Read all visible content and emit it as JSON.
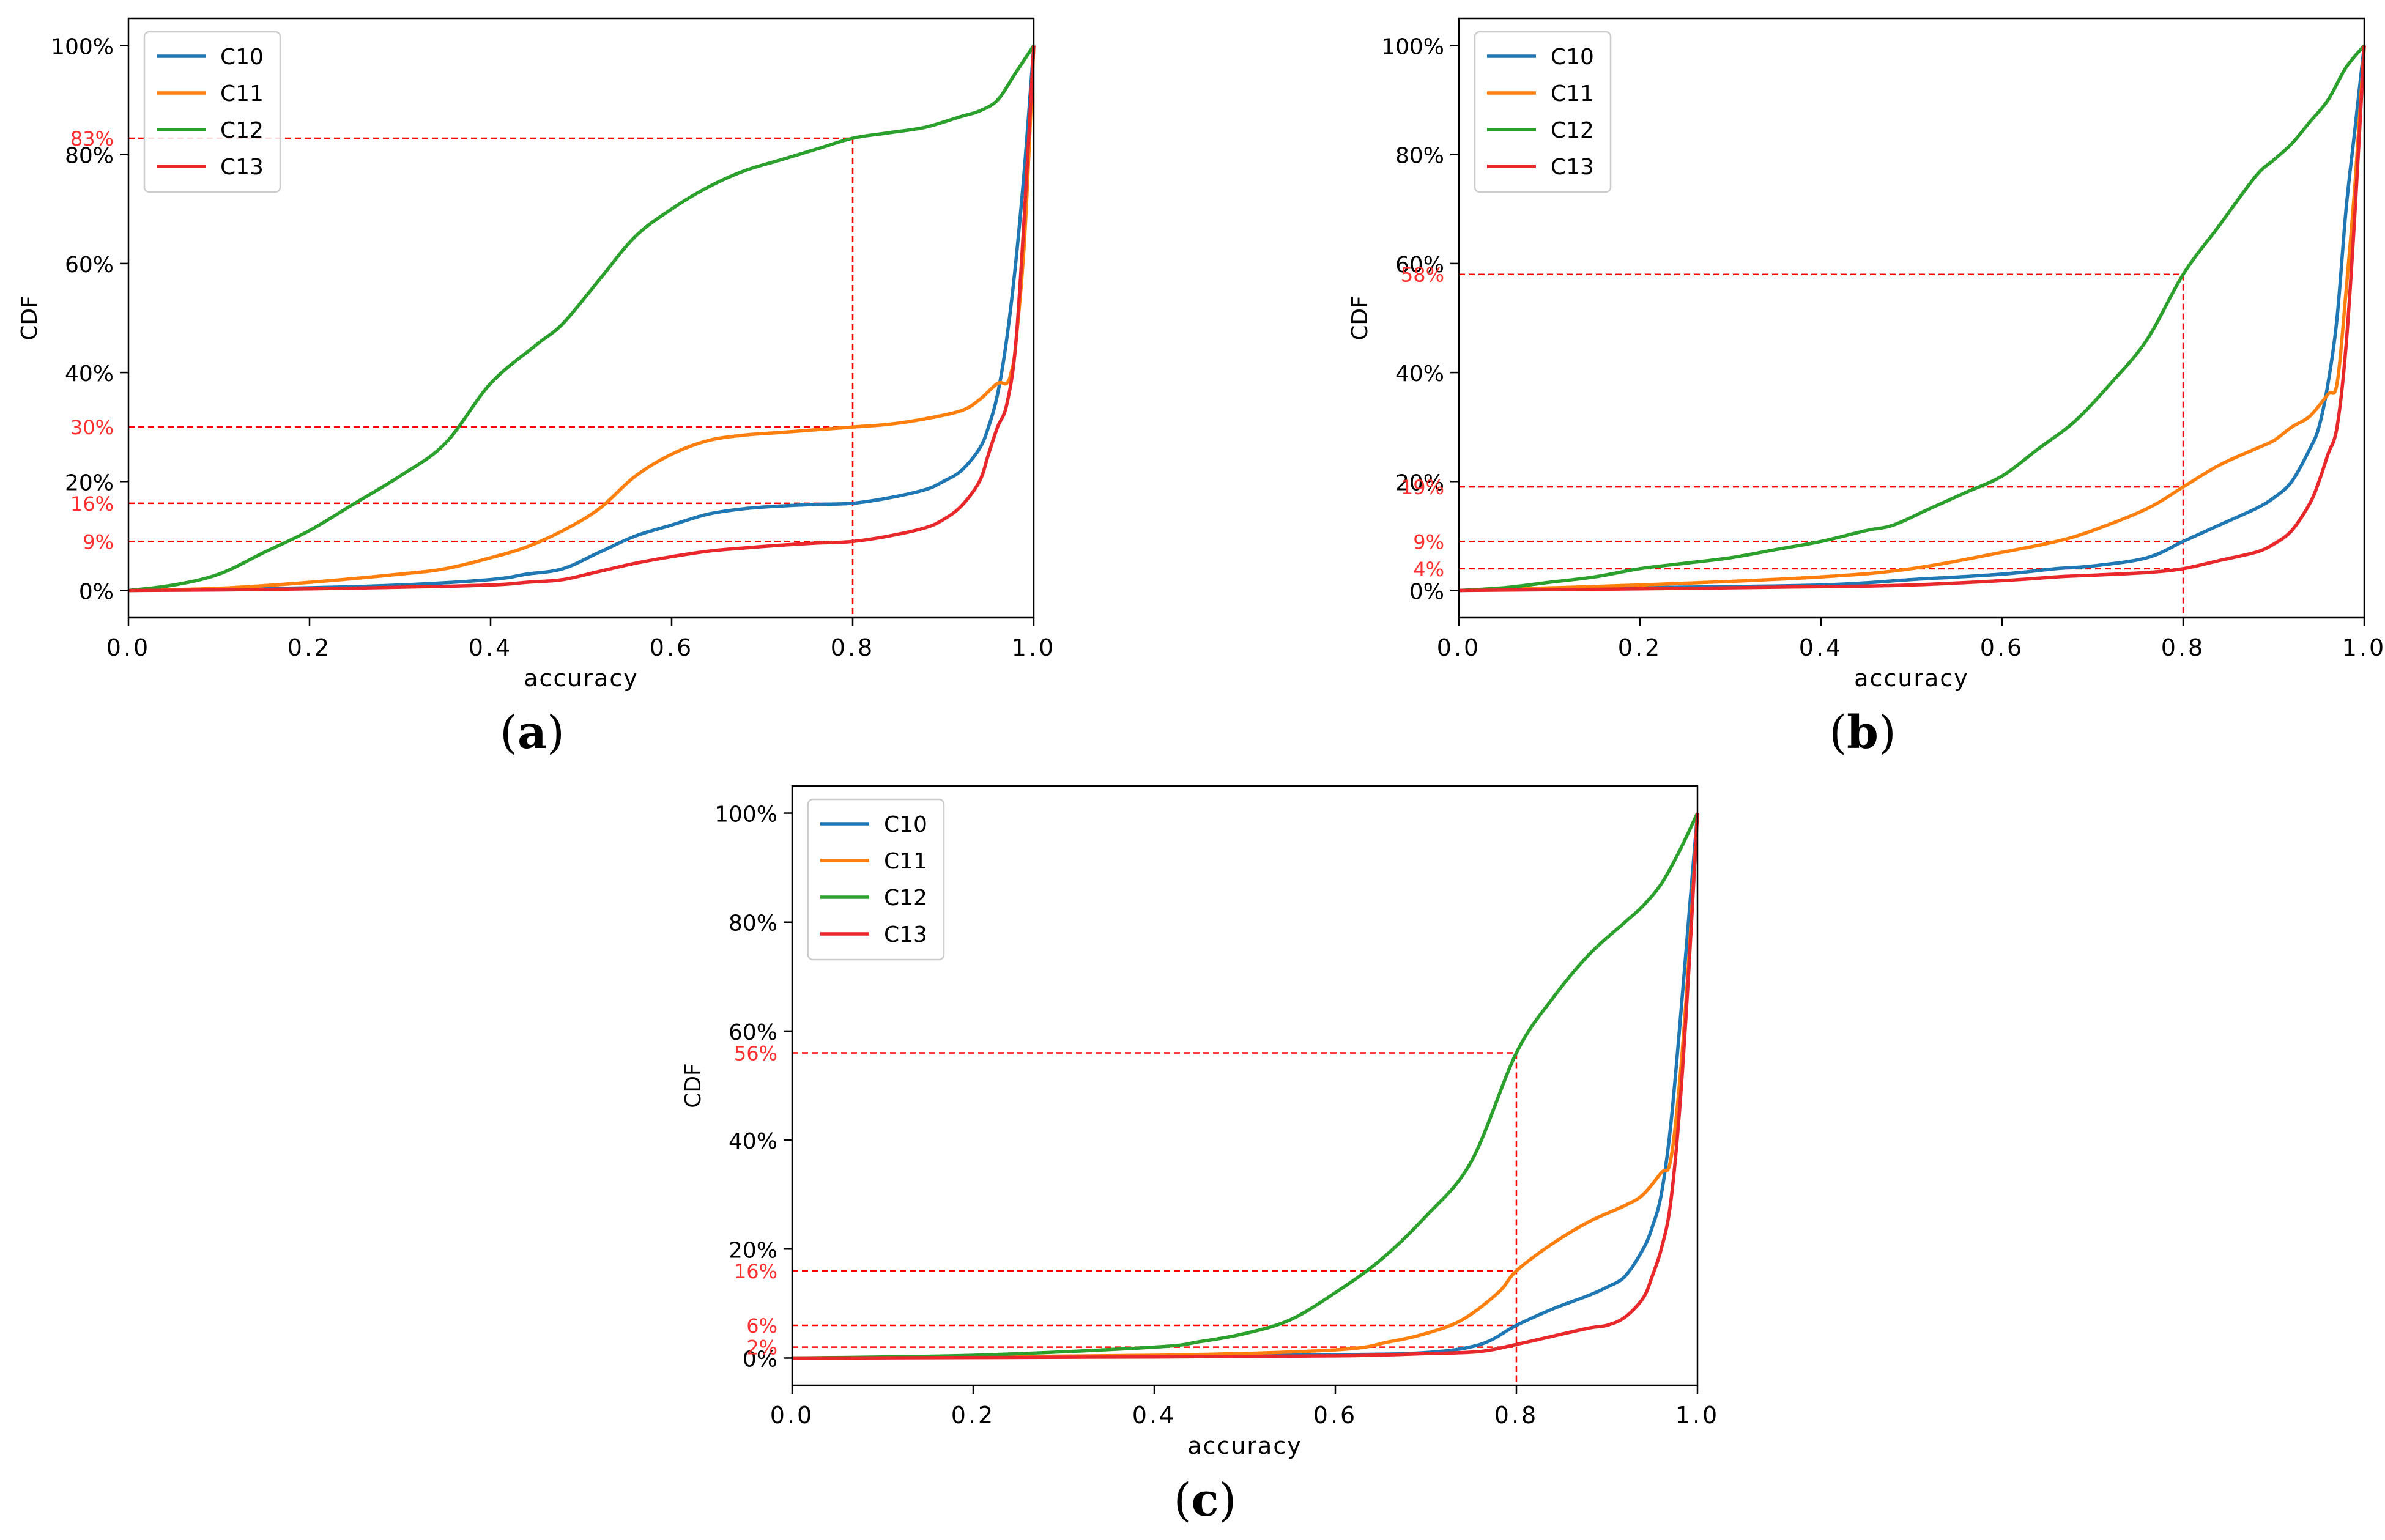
{
  "chart_data": [
    {
      "type": "line",
      "panel_label": "(a)",
      "panel_letter": "a",
      "xlabel": "accuracy",
      "ylabel": "CDF",
      "xlim": [
        0.0,
        1.0
      ],
      "ylim": [
        -0.05,
        1.05
      ],
      "xticks": [
        0.0,
        0.2,
        0.4,
        0.6,
        0.8,
        1.0
      ],
      "xtick_labels": [
        "0.0",
        "0.2",
        "0.4",
        "0.6",
        "0.8",
        "1.0"
      ],
      "yticks": [
        0.0,
        0.2,
        0.4,
        0.6,
        0.8,
        1.0
      ],
      "ytick_labels": [
        "0%",
        "20%",
        "40%",
        "60%",
        "80%",
        "100%"
      ],
      "legend_position": "top-left",
      "series": [
        {
          "name": "C10",
          "color": "#1f77b4",
          "x": [
            0.0,
            0.1,
            0.2,
            0.3,
            0.4,
            0.44,
            0.48,
            0.52,
            0.56,
            0.6,
            0.64,
            0.68,
            0.72,
            0.76,
            0.8,
            0.84,
            0.88,
            0.9,
            0.92,
            0.94,
            0.95,
            0.96,
            0.97,
            0.98,
            0.99,
            1.0
          ],
          "y": [
            0.0,
            0.002,
            0.005,
            0.01,
            0.02,
            0.03,
            0.04,
            0.07,
            0.1,
            0.12,
            0.14,
            0.15,
            0.155,
            0.158,
            0.16,
            0.17,
            0.185,
            0.2,
            0.22,
            0.26,
            0.3,
            0.36,
            0.46,
            0.6,
            0.78,
            1.0
          ]
        },
        {
          "name": "C11",
          "color": "#ff7f0e",
          "x": [
            0.0,
            0.1,
            0.2,
            0.3,
            0.35,
            0.4,
            0.44,
            0.48,
            0.52,
            0.56,
            0.6,
            0.64,
            0.68,
            0.72,
            0.76,
            0.8,
            0.84,
            0.88,
            0.92,
            0.94,
            0.96,
            0.97,
            0.975,
            0.98,
            0.99,
            1.0
          ],
          "y": [
            0.0,
            0.004,
            0.015,
            0.03,
            0.04,
            0.06,
            0.08,
            0.11,
            0.15,
            0.21,
            0.25,
            0.275,
            0.285,
            0.29,
            0.295,
            0.3,
            0.305,
            0.315,
            0.33,
            0.35,
            0.38,
            0.38,
            0.4,
            0.45,
            0.65,
            1.0
          ]
        },
        {
          "name": "C12",
          "color": "#2ca02c",
          "x": [
            0.0,
            0.05,
            0.1,
            0.15,
            0.2,
            0.25,
            0.3,
            0.35,
            0.4,
            0.45,
            0.48,
            0.52,
            0.56,
            0.6,
            0.64,
            0.68,
            0.72,
            0.76,
            0.8,
            0.84,
            0.88,
            0.92,
            0.94,
            0.96,
            0.98,
            1.0
          ],
          "y": [
            0.0,
            0.01,
            0.03,
            0.07,
            0.11,
            0.16,
            0.21,
            0.27,
            0.38,
            0.45,
            0.49,
            0.57,
            0.65,
            0.7,
            0.74,
            0.77,
            0.79,
            0.81,
            0.83,
            0.84,
            0.85,
            0.87,
            0.88,
            0.9,
            0.95,
            1.0
          ]
        },
        {
          "name": "C13",
          "color": "#e8282b",
          "x": [
            0.0,
            0.1,
            0.2,
            0.3,
            0.4,
            0.44,
            0.48,
            0.52,
            0.56,
            0.6,
            0.64,
            0.68,
            0.72,
            0.76,
            0.8,
            0.84,
            0.88,
            0.9,
            0.92,
            0.94,
            0.95,
            0.96,
            0.97,
            0.98,
            0.99,
            1.0
          ],
          "y": [
            0.0,
            0.001,
            0.003,
            0.006,
            0.01,
            0.015,
            0.02,
            0.035,
            0.05,
            0.062,
            0.072,
            0.078,
            0.083,
            0.087,
            0.09,
            0.1,
            0.115,
            0.13,
            0.155,
            0.2,
            0.25,
            0.3,
            0.34,
            0.45,
            0.7,
            1.0
          ]
        }
      ],
      "reference": {
        "x": 0.8,
        "lines": [
          {
            "y": 0.83,
            "label": "83%"
          },
          {
            "y": 0.3,
            "label": "30%"
          },
          {
            "y": 0.16,
            "label": "16%"
          },
          {
            "y": 0.09,
            "label": "9%"
          }
        ]
      }
    },
    {
      "type": "line",
      "panel_label": "(b)",
      "panel_letter": "b",
      "xlabel": "accuracy",
      "ylabel": "CDF",
      "xlim": [
        0.0,
        1.0
      ],
      "ylim": [
        -0.05,
        1.05
      ],
      "xticks": [
        0.0,
        0.2,
        0.4,
        0.6,
        0.8,
        1.0
      ],
      "xtick_labels": [
        "0.0",
        "0.2",
        "0.4",
        "0.6",
        "0.8",
        "1.0"
      ],
      "yticks": [
        0.0,
        0.2,
        0.4,
        0.6,
        0.8,
        1.0
      ],
      "ytick_labels": [
        "0%",
        "20%",
        "40%",
        "60%",
        "80%",
        "100%"
      ],
      "legend_position": "top-left",
      "series": [
        {
          "name": "C10",
          "color": "#1f77b4",
          "x": [
            0.0,
            0.2,
            0.4,
            0.5,
            0.6,
            0.66,
            0.7,
            0.76,
            0.8,
            0.84,
            0.88,
            0.9,
            0.92,
            0.94,
            0.95,
            0.96,
            0.97,
            0.98,
            0.99,
            1.0
          ],
          "y": [
            0.0,
            0.005,
            0.01,
            0.02,
            0.03,
            0.04,
            0.045,
            0.06,
            0.09,
            0.12,
            0.15,
            0.17,
            0.2,
            0.26,
            0.3,
            0.38,
            0.5,
            0.7,
            0.85,
            1.0
          ]
        },
        {
          "name": "C11",
          "color": "#ff7f0e",
          "x": [
            0.0,
            0.2,
            0.4,
            0.5,
            0.6,
            0.66,
            0.7,
            0.76,
            0.8,
            0.84,
            0.88,
            0.9,
            0.92,
            0.94,
            0.96,
            0.97,
            0.98,
            0.99,
            1.0
          ],
          "y": [
            0.0,
            0.01,
            0.025,
            0.04,
            0.07,
            0.09,
            0.11,
            0.15,
            0.19,
            0.23,
            0.26,
            0.275,
            0.3,
            0.32,
            0.36,
            0.38,
            0.55,
            0.75,
            1.0
          ]
        },
        {
          "name": "C12",
          "color": "#2ca02c",
          "x": [
            0.0,
            0.05,
            0.1,
            0.15,
            0.2,
            0.25,
            0.3,
            0.35,
            0.4,
            0.45,
            0.48,
            0.52,
            0.56,
            0.6,
            0.64,
            0.68,
            0.72,
            0.76,
            0.8,
            0.84,
            0.88,
            0.9,
            0.92,
            0.94,
            0.96,
            0.98,
            1.0
          ],
          "y": [
            0.0,
            0.005,
            0.015,
            0.025,
            0.04,
            0.05,
            0.06,
            0.075,
            0.09,
            0.11,
            0.12,
            0.15,
            0.18,
            0.21,
            0.26,
            0.31,
            0.38,
            0.46,
            0.58,
            0.67,
            0.76,
            0.79,
            0.82,
            0.86,
            0.9,
            0.96,
            1.0
          ]
        },
        {
          "name": "C13",
          "color": "#e8282b",
          "x": [
            0.0,
            0.2,
            0.4,
            0.5,
            0.6,
            0.66,
            0.7,
            0.76,
            0.8,
            0.84,
            0.88,
            0.9,
            0.92,
            0.94,
            0.95,
            0.96,
            0.97,
            0.98,
            0.99,
            1.0
          ],
          "y": [
            0.0,
            0.003,
            0.007,
            0.01,
            0.018,
            0.025,
            0.028,
            0.033,
            0.04,
            0.055,
            0.07,
            0.085,
            0.11,
            0.16,
            0.2,
            0.25,
            0.3,
            0.45,
            0.7,
            1.0
          ]
        }
      ],
      "reference": {
        "x": 0.8,
        "lines": [
          {
            "y": 0.58,
            "label": "58%"
          },
          {
            "y": 0.19,
            "label": "19%"
          },
          {
            "y": 0.09,
            "label": "9%"
          },
          {
            "y": 0.04,
            "label": "4%"
          }
        ]
      }
    },
    {
      "type": "line",
      "panel_label": "(c)",
      "panel_letter": "c",
      "xlabel": "accuracy",
      "ylabel": "CDF",
      "xlim": [
        0.0,
        1.0
      ],
      "ylim": [
        -0.05,
        1.05
      ],
      "xticks": [
        0.0,
        0.2,
        0.4,
        0.6,
        0.8,
        1.0
      ],
      "xtick_labels": [
        "0.0",
        "0.2",
        "0.4",
        "0.6",
        "0.8",
        "1.0"
      ],
      "yticks": [
        0.0,
        0.2,
        0.4,
        0.6,
        0.8,
        1.0
      ],
      "ytick_labels": [
        "0%",
        "20%",
        "40%",
        "60%",
        "80%",
        "100%"
      ],
      "legend_position": "top-left",
      "series": [
        {
          "name": "C10",
          "color": "#1f77b4",
          "x": [
            0.0,
            0.4,
            0.6,
            0.7,
            0.76,
            0.8,
            0.84,
            0.88,
            0.9,
            0.92,
            0.94,
            0.95,
            0.96,
            0.97,
            0.98,
            0.99,
            1.0
          ],
          "y": [
            0.0,
            0.003,
            0.006,
            0.01,
            0.025,
            0.06,
            0.09,
            0.115,
            0.13,
            0.15,
            0.2,
            0.24,
            0.3,
            0.42,
            0.6,
            0.8,
            1.0
          ]
        },
        {
          "name": "C11",
          "color": "#ff7f0e",
          "x": [
            0.0,
            0.4,
            0.6,
            0.66,
            0.7,
            0.74,
            0.78,
            0.8,
            0.84,
            0.88,
            0.92,
            0.94,
            0.96,
            0.97,
            0.98,
            0.99,
            1.0
          ],
          "y": [
            0.0,
            0.005,
            0.015,
            0.03,
            0.045,
            0.07,
            0.12,
            0.16,
            0.21,
            0.25,
            0.28,
            0.3,
            0.34,
            0.36,
            0.5,
            0.72,
            1.0
          ]
        },
        {
          "name": "C12",
          "color": "#2ca02c",
          "x": [
            0.0,
            0.2,
            0.4,
            0.45,
            0.5,
            0.55,
            0.6,
            0.65,
            0.7,
            0.75,
            0.8,
            0.84,
            0.88,
            0.92,
            0.94,
            0.96,
            0.98,
            1.0
          ],
          "y": [
            0.0,
            0.005,
            0.02,
            0.03,
            0.045,
            0.07,
            0.12,
            0.18,
            0.26,
            0.36,
            0.56,
            0.66,
            0.74,
            0.8,
            0.83,
            0.87,
            0.93,
            1.0
          ]
        },
        {
          "name": "C13",
          "color": "#e8282b",
          "x": [
            0.0,
            0.4,
            0.6,
            0.7,
            0.76,
            0.8,
            0.84,
            0.88,
            0.9,
            0.92,
            0.94,
            0.95,
            0.96,
            0.97,
            0.98,
            0.99,
            1.0
          ],
          "y": [
            0.0,
            0.002,
            0.004,
            0.008,
            0.012,
            0.025,
            0.04,
            0.055,
            0.06,
            0.075,
            0.11,
            0.15,
            0.2,
            0.28,
            0.45,
            0.7,
            1.0
          ]
        }
      ],
      "reference": {
        "x": 0.8,
        "lines": [
          {
            "y": 0.56,
            "label": "56%"
          },
          {
            "y": 0.16,
            "label": "16%"
          },
          {
            "y": 0.06,
            "label": "6%"
          },
          {
            "y": 0.02,
            "label": "2%"
          }
        ]
      }
    }
  ]
}
